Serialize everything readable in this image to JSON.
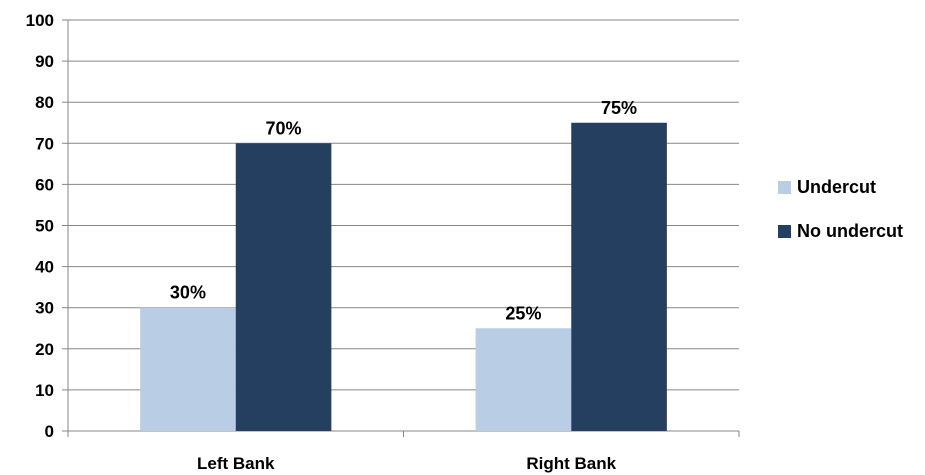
{
  "chart_data": {
    "type": "bar",
    "categories": [
      "Left Bank",
      "Right Bank"
    ],
    "series": [
      {
        "name": "Undercut",
        "values": [
          30,
          25
        ],
        "color": "#b9cde5",
        "labels": [
          "30%",
          "25%"
        ]
      },
      {
        "name": "No undercut",
        "values": [
          70,
          75
        ],
        "color": "#243f60",
        "labels": [
          "70%",
          "75%"
        ]
      }
    ],
    "ylim": [
      0,
      100
    ],
    "yticks": [
      0,
      10,
      20,
      30,
      40,
      50,
      60,
      70,
      80,
      90,
      100
    ],
    "grid": true,
    "legend_position": "right",
    "title": "",
    "xlabel": "",
    "ylabel": ""
  }
}
